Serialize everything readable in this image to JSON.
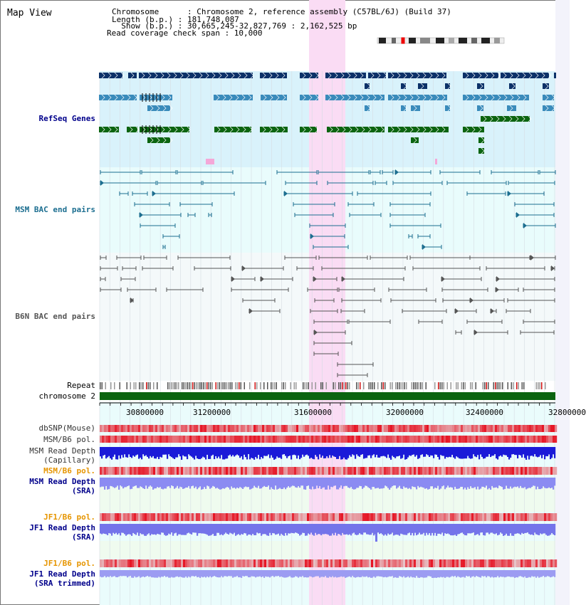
{
  "title": "Map View",
  "header": {
    "chromosome": "Chromosome      : Chromosome 2, reference assembly (C57BL/6J) (Build 37)",
    "length": "Length (b.p.) : 181,748,087",
    "show": "  Show (b.p.) : 30,665,245-32,827,769 : 2,162,525 bp",
    "coverage": "Read coverage check span : 10,000"
  },
  "tracks": {
    "refseq": "RefSeq Genes",
    "msm_bac": "MSM BAC end pairs",
    "b6n_bac": "B6N BAC end pairs",
    "repeat": "Repeat",
    "chromosome": "chromosome 2",
    "dbsnp": "dbSNP(Mouse)",
    "msm_b6_pol": "MSM/B6 pol.",
    "msm_depth_cap_1": "MSM Read Depth",
    "msm_depth_cap_2": "(Capillary)",
    "msm_b6_pol2": "MSM/B6 pol.",
    "msm_depth_sra_1": "MSM Read Depth",
    "msm_depth_sra_2": "(SRA)",
    "jf1_b6_pol": "JF1/B6 pol.",
    "jf1_depth_sra_1": "JF1 Read Depth",
    "jf1_depth_sra_2": "(SRA)",
    "jf1_b6_pol2": "JF1/B6 pol.",
    "jf1_depth_trim_1": "JF1 Read Depth",
    "jf1_depth_trim_2": "(SRA trimmed)"
  },
  "axis": {
    "ticks": [
      "30800000",
      "31200000",
      "31600000",
      "32000000",
      "32400000",
      "32800000"
    ]
  },
  "colors": {
    "refseq_bg": "#d9f2fb",
    "msm_bg": "#e9fcfc",
    "b6n_bg": "#f4f9fa",
    "highlight": "#fadcf4",
    "gene_navy": "#0c3168",
    "gene_teal": "#3a8bbb",
    "gene_green": "#0b6410",
    "msm_line": "#1c6e90",
    "b6n_line": "#555555",
    "label_navy": "#00008b",
    "label_teal": "#1c6e90",
    "label_orange": "#e69500"
  }
}
